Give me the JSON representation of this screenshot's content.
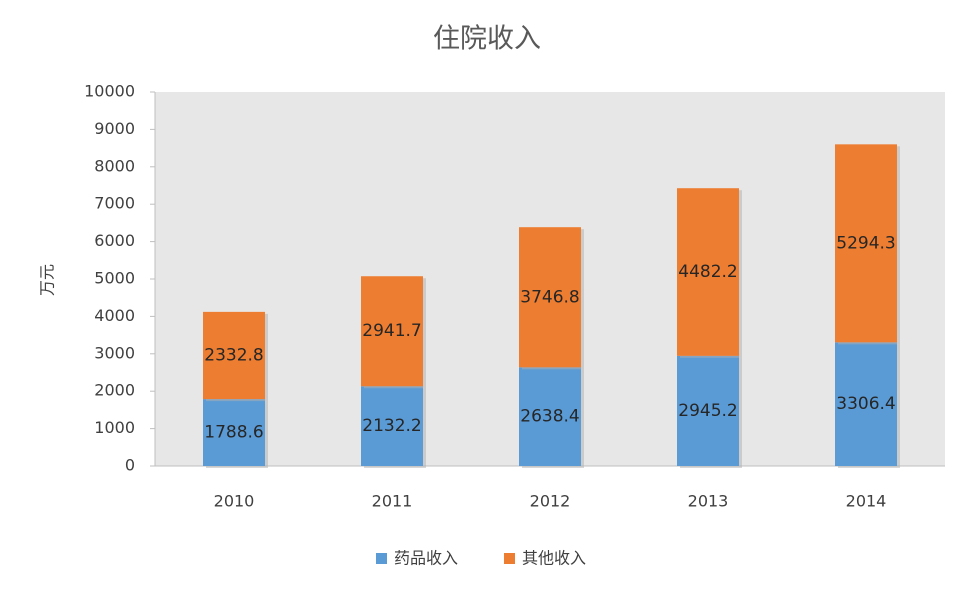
{
  "chart_data": {
    "type": "stacked_bar",
    "title": "住院收入",
    "y_label": "万元",
    "categories": [
      "2010",
      "2011",
      "2012",
      "2013",
      "2014"
    ],
    "series": [
      {
        "name": "药品收入",
        "color": "#5b9bd5",
        "values": [
          1788.6,
          2132.2,
          2638.4,
          2945.2,
          3306.4
        ]
      },
      {
        "name": "其他收入",
        "color": "#ed7d31",
        "values": [
          2332.8,
          2941.7,
          3746.8,
          4482.2,
          5294.3
        ]
      }
    ],
    "ylim": [
      0,
      10000
    ],
    "yticks": [
      0,
      1000,
      2000,
      3000,
      4000,
      5000,
      6000,
      7000,
      8000,
      9000,
      10000
    ],
    "grid": false,
    "legend": "bottom"
  }
}
